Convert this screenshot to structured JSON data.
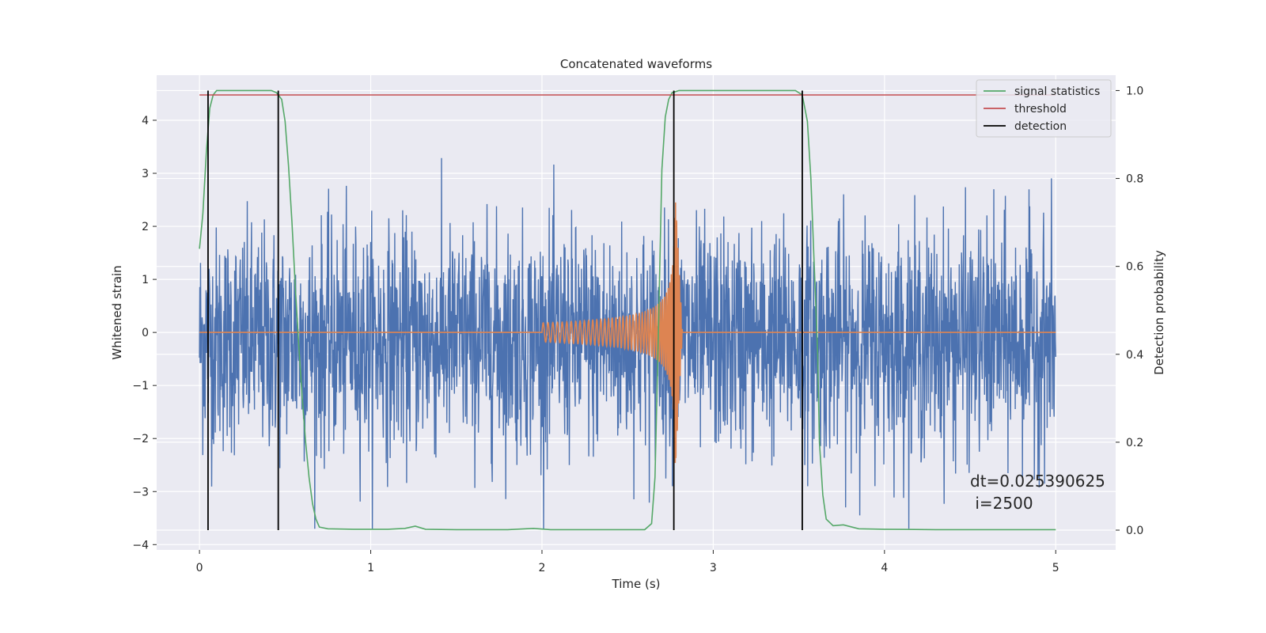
{
  "chart_data": {
    "type": "line",
    "title": "Concatenated waveforms",
    "xlabel": "Time (s)",
    "ylabel": "Whitened strain",
    "y2label": "Detection probability",
    "xlim": [
      -0.25,
      5.35
    ],
    "ylim": [
      -4.1,
      4.85
    ],
    "y2lim": [
      -0.045,
      1.035
    ],
    "xticks": [
      0,
      1,
      2,
      3,
      4,
      5
    ],
    "yticks": [
      -4,
      -3,
      -2,
      -1,
      0,
      1,
      2,
      3,
      4
    ],
    "y2ticks": [
      0.0,
      0.2,
      0.4,
      0.6,
      0.8,
      1.0
    ],
    "xtick_labels": [
      "0",
      "1",
      "2",
      "3",
      "4",
      "5"
    ],
    "ytick_labels": [
      "−4",
      "−3",
      "−2",
      "−1",
      "0",
      "1",
      "2",
      "3",
      "4"
    ],
    "y2tick_labels": [
      "0.0",
      "0.2",
      "0.4",
      "0.6",
      "0.8",
      "1.0"
    ],
    "grid": true,
    "legend_position": "top-right",
    "colors": {
      "strain": "#4c72b0",
      "waveform": "#dd8452",
      "statistic": "#55a868",
      "threshold": "#c44e52",
      "detection": "#000000",
      "axes_bg": "#eaeaf2",
      "grid": "#ffffff"
    },
    "series": [
      {
        "name": "",
        "role": "strain",
        "axis": "left",
        "x_range": [
          0,
          5
        ],
        "amplitude_range": [
          -3.7,
          3.3
        ]
      },
      {
        "name": "",
        "role": "waveform",
        "axis": "left",
        "chirp": {
          "start": 2.0,
          "merger": 2.78,
          "start_amplitude": 0.18,
          "peak_amplitude": 2.6,
          "peak_negative": -2.6
        }
      },
      {
        "name": "signal statistics",
        "role": "statistic",
        "axis": "right",
        "x": [
          0,
          0.02,
          0.04,
          0.06,
          0.08,
          0.1,
          0.15,
          0.3,
          0.42,
          0.45,
          0.48,
          0.5,
          0.52,
          0.54,
          0.56,
          0.58,
          0.6,
          0.62,
          0.64,
          0.66,
          0.68,
          0.7,
          0.75,
          0.9,
          1.1,
          1.2,
          1.26,
          1.32,
          1.5,
          1.8,
          1.95,
          2.05,
          2.3,
          2.6,
          2.64,
          2.66,
          2.68,
          2.7,
          2.72,
          2.74,
          2.76,
          2.8,
          2.9,
          3.3,
          3.48,
          3.52,
          3.55,
          3.57,
          3.59,
          3.61,
          3.62,
          3.64,
          3.66,
          3.7,
          3.76,
          3.85,
          4.0,
          4.3,
          5.0
        ],
        "y": [
          0.64,
          0.72,
          0.86,
          0.96,
          0.99,
          1.0,
          1.0,
          1.0,
          1.0,
          0.995,
          0.98,
          0.93,
          0.83,
          0.7,
          0.55,
          0.42,
          0.3,
          0.2,
          0.12,
          0.06,
          0.025,
          0.007,
          0.003,
          0.002,
          0.002,
          0.004,
          0.009,
          0.002,
          0.001,
          0.001,
          0.004,
          0.001,
          0.001,
          0.001,
          0.015,
          0.12,
          0.45,
          0.82,
          0.94,
          0.98,
          0.995,
          1.0,
          1.0,
          1.0,
          1.0,
          0.99,
          0.93,
          0.8,
          0.6,
          0.4,
          0.2,
          0.08,
          0.025,
          0.01,
          0.012,
          0.003,
          0.002,
          0.001,
          0.001
        ]
      },
      {
        "name": "threshold",
        "role": "threshold",
        "axis": "right",
        "x": [
          0,
          5
        ],
        "y": [
          0.99,
          0.99
        ]
      },
      {
        "name": "detection",
        "role": "detection",
        "axis": "right",
        "x": [
          0.05,
          0.46,
          2.77,
          3.52
        ],
        "y_range": [
          0,
          1.0
        ]
      }
    ],
    "annotations": [
      "dt=0.025390625",
      " i=2500"
    ]
  }
}
